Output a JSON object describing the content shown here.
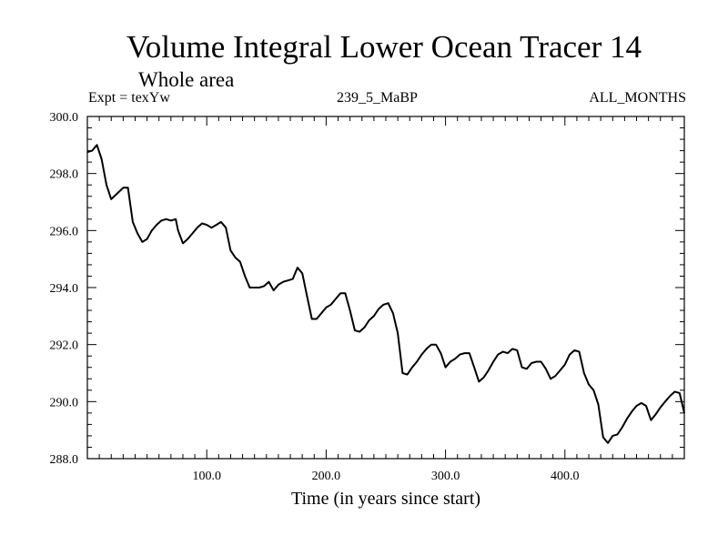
{
  "header": {
    "title": "Volume Integral Lower Ocean Tracer 14",
    "subtitle": "Whole area",
    "experiment": "Expt = texYw",
    "run": "239_5_MaBP",
    "period": "ALL_MONTHS"
  },
  "chart_data": {
    "type": "line",
    "title": "Volume Integral Lower Ocean Tracer 14",
    "subtitle": "Whole area",
    "xlabel": "Time (in years since start)",
    "ylabel": "",
    "xlim": [
      0,
      500
    ],
    "ylim": [
      288.0,
      300.0
    ],
    "x_ticks": [
      100.0,
      200.0,
      300.0,
      400.0
    ],
    "x_tick_labels": [
      "100.0",
      "200.0",
      "300.0",
      "400.0"
    ],
    "y_ticks": [
      288.0,
      290.0,
      292.0,
      294.0,
      296.0,
      298.0,
      300.0
    ],
    "y_tick_labels": [
      "288.0",
      "290.0",
      "292.0",
      "294.0",
      "296.0",
      "298.0",
      "300.0"
    ],
    "grid": false,
    "line_color": "#000000",
    "series": [
      {
        "x": [
          0,
          4,
          8,
          12,
          16,
          20,
          25,
          30,
          34,
          38,
          42,
          46,
          50,
          54,
          58,
          62,
          66,
          70,
          74,
          76,
          80,
          84,
          88,
          92,
          96,
          100,
          104,
          108,
          112,
          116,
          120,
          124,
          128,
          132,
          136,
          140,
          144,
          148,
          152,
          156,
          160,
          164,
          168,
          172,
          176,
          180,
          184,
          188,
          192,
          196,
          200,
          204,
          208,
          212,
          216,
          220,
          224,
          228,
          232,
          236,
          240,
          244,
          248,
          252,
          256,
          260,
          264,
          268,
          272,
          276,
          280,
          284,
          288,
          292,
          296,
          300,
          304,
          308,
          312,
          316,
          320,
          324,
          328,
          332,
          336,
          340,
          344,
          348,
          352,
          356,
          360,
          364,
          368,
          372,
          376,
          380,
          384,
          388,
          392,
          396,
          400,
          404,
          408,
          412,
          416,
          420,
          424,
          428,
          432,
          436,
          440,
          444,
          448,
          452,
          456,
          460,
          464,
          468,
          472,
          476,
          480,
          484,
          488,
          492,
          496,
          500
        ],
        "y": [
          298.75,
          298.8,
          299.0,
          298.5,
          297.6,
          297.1,
          297.3,
          297.5,
          297.5,
          296.3,
          295.9,
          295.6,
          295.7,
          296.0,
          296.2,
          296.35,
          296.4,
          296.35,
          296.4,
          296.0,
          295.55,
          295.7,
          295.9,
          296.1,
          296.25,
          296.2,
          296.1,
          296.2,
          296.3,
          296.1,
          295.3,
          295.05,
          294.9,
          294.4,
          294.0,
          294.0,
          294.0,
          294.05,
          294.2,
          293.9,
          294.1,
          294.2,
          294.25,
          294.3,
          294.7,
          294.5,
          293.7,
          292.9,
          292.9,
          293.1,
          293.3,
          293.4,
          293.6,
          293.8,
          293.8,
          293.2,
          292.5,
          292.45,
          292.6,
          292.85,
          293.0,
          293.25,
          293.4,
          293.45,
          293.1,
          292.4,
          291.0,
          290.95,
          291.2,
          291.4,
          291.65,
          291.85,
          292.0,
          292.0,
          291.7,
          291.2,
          291.4,
          291.5,
          291.65,
          291.7,
          291.7,
          291.2,
          290.7,
          290.85,
          291.1,
          291.4,
          291.65,
          291.75,
          291.7,
          291.85,
          291.8,
          291.2,
          291.15,
          291.35,
          291.4,
          291.4,
          291.15,
          290.8,
          290.9,
          291.1,
          291.3,
          291.65,
          291.8,
          291.75,
          291.0,
          290.6,
          290.4,
          289.9,
          288.75,
          288.55,
          288.8,
          288.85,
          289.1,
          289.4,
          289.65,
          289.85,
          289.95,
          289.85,
          289.35,
          289.55,
          289.8,
          290.0,
          290.2,
          290.35,
          290.3,
          289.6
        ]
      }
    ]
  }
}
